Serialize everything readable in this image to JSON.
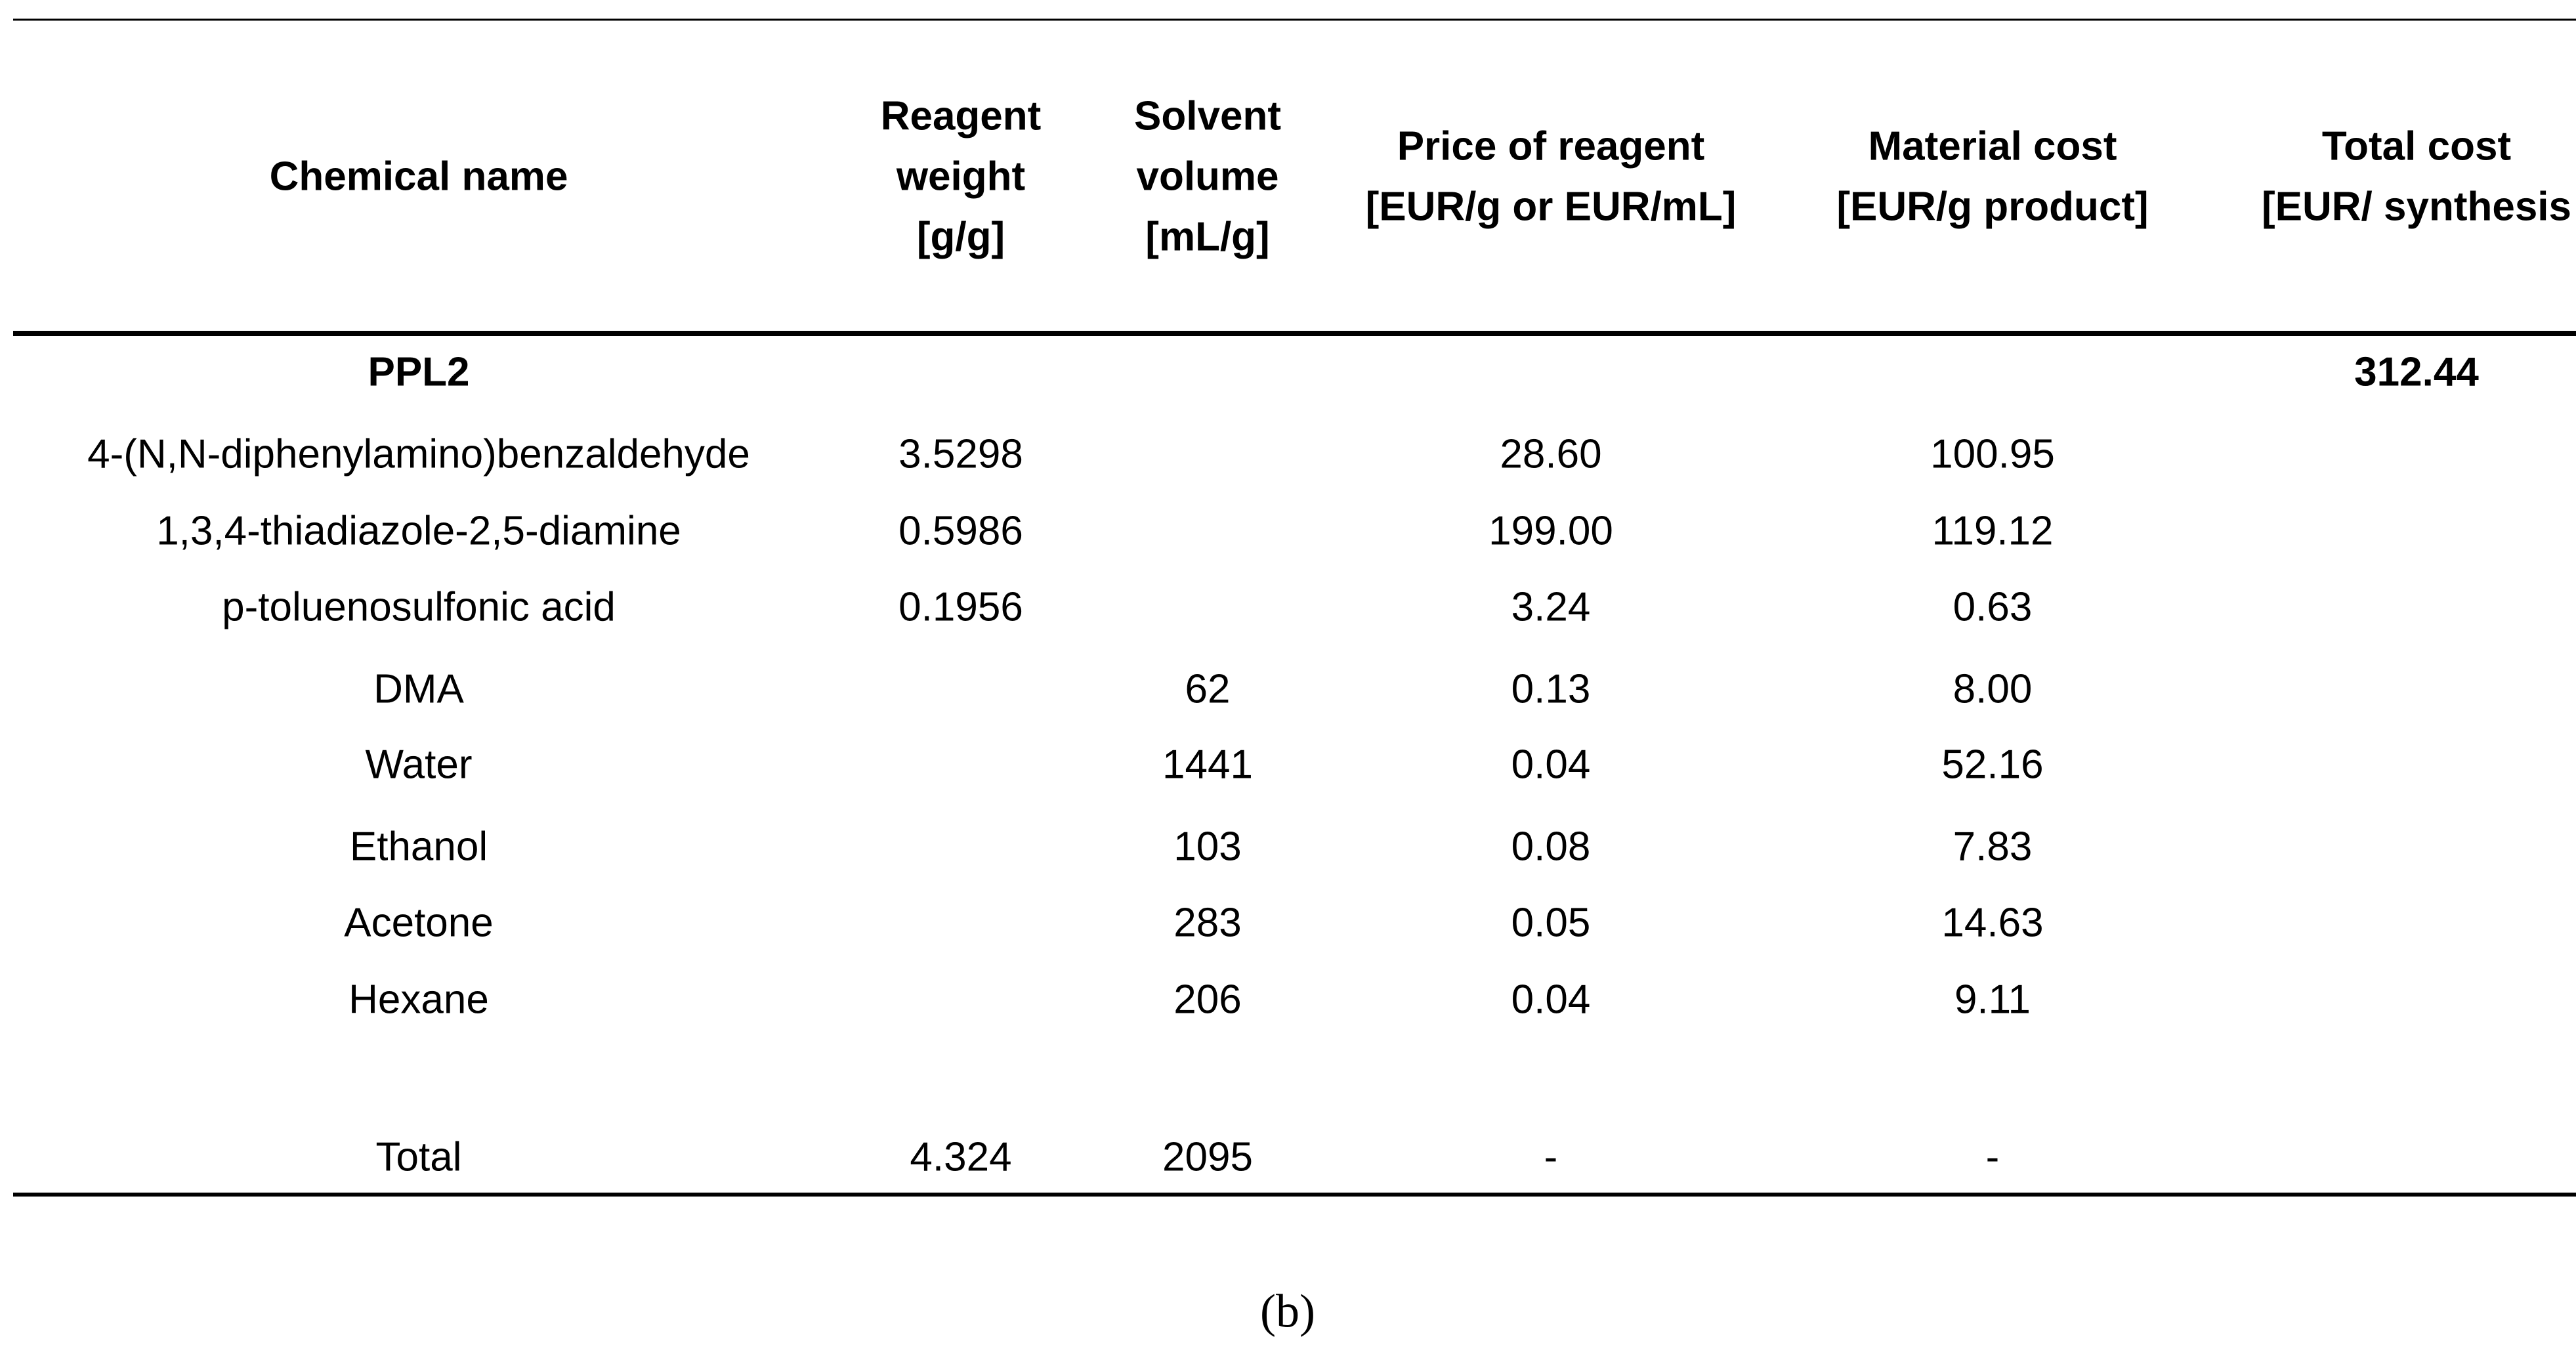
{
  "table": {
    "header": [
      [
        "Chemical name"
      ],
      [
        "Reagent",
        "weight",
        "[g/g]"
      ],
      [
        "Solvent",
        "volume",
        "[mL/g]"
      ],
      [
        "Price of reagent",
        "[EUR/g or EUR/mL]"
      ],
      [
        "Material cost",
        "[EUR/g product]"
      ],
      [
        "Total cost",
        "[EUR/ synthesis"
      ]
    ],
    "rows": [
      [
        "PPL2",
        null,
        null,
        null,
        null,
        "312.44"
      ],
      [
        "4-(N,N-diphenylamino)benzaldehyde",
        "3.5298",
        null,
        "28.60",
        "100.95",
        null
      ],
      [
        "1,3,4-thiadiazole-2,5-diamine",
        "0.5986",
        null,
        "199.00",
        "119.12",
        null
      ],
      [
        "p-toluenosulfonic acid",
        "0.1956",
        null,
        "3.24",
        "0.63",
        null
      ],
      [
        "DMA",
        null,
        "62",
        "0.13",
        "8.00",
        null
      ],
      [
        "Water",
        null,
        "1441",
        "0.04",
        "52.16",
        null
      ],
      [
        "Ethanol",
        null,
        "103",
        "0.08",
        "7.83",
        null
      ],
      [
        "Acetone",
        null,
        "283",
        "0.05",
        "14.63",
        null
      ],
      [
        "Hexane",
        null,
        "206",
        "0.04",
        "9.11",
        null
      ],
      [
        "Total",
        "4.324",
        "2095",
        "-",
        "-",
        null
      ]
    ],
    "caption": "(b)"
  }
}
